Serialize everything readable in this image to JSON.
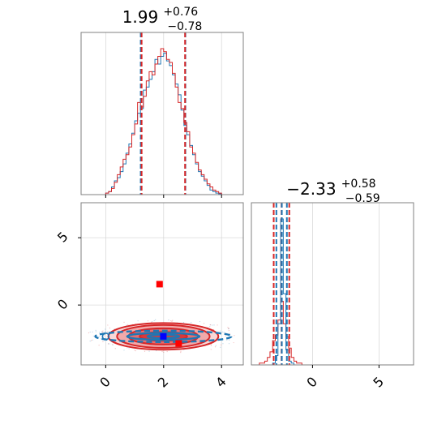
{
  "chart_data": {
    "type": "corner",
    "colors": {
      "series_a": "#1f77b4",
      "series_b": "#d62728",
      "marker_a": "#0000ff",
      "marker_b": "#ff0000",
      "grid": "#d9d9d9",
      "frame": "#808080"
    },
    "parameters": [
      {
        "title_main": "1.99",
        "title_plus": "+0.76",
        "title_minus": "−0.78",
        "range": [
          -0.85,
          4.75
        ],
        "ticks": [
          0,
          2,
          4
        ],
        "tick_labels": [
          "0",
          "2",
          "4"
        ],
        "quantiles": {
          "series_a": [
            1.21,
            1.99,
            2.75
          ],
          "series_b": [
            1.24,
            1.99,
            2.74
          ]
        },
        "histogram": {
          "bins": [
            0.0,
            0.1,
            0.2,
            0.3,
            0.4,
            0.5,
            0.6,
            0.7,
            0.8,
            0.9,
            1.0,
            1.1,
            1.2,
            1.3,
            1.4,
            1.5,
            1.6,
            1.7,
            1.8,
            1.9,
            2.0,
            2.1,
            2.2,
            2.3,
            2.4,
            2.5,
            2.6,
            2.7,
            2.8,
            2.9,
            3.0,
            3.1,
            3.2,
            3.3,
            3.4,
            3.5,
            3.6,
            3.7,
            3.8,
            3.9
          ],
          "series_a": [
            0.01,
            0.02,
            0.05,
            0.09,
            0.11,
            0.15,
            0.2,
            0.27,
            0.33,
            0.4,
            0.48,
            0.53,
            0.56,
            0.68,
            0.7,
            0.75,
            0.8,
            0.88,
            0.85,
            0.9,
            0.92,
            0.87,
            0.84,
            0.78,
            0.72,
            0.65,
            0.55,
            0.45,
            0.39,
            0.32,
            0.26,
            0.2,
            0.15,
            0.12,
            0.09,
            0.06,
            0.03,
            0.02,
            0.01,
            0.005
          ],
          "series_b": [
            0.01,
            0.02,
            0.04,
            0.08,
            0.13,
            0.18,
            0.23,
            0.26,
            0.31,
            0.39,
            0.46,
            0.6,
            0.57,
            0.64,
            0.74,
            0.8,
            0.78,
            0.85,
            0.9,
            0.95,
            0.93,
            0.88,
            0.86,
            0.79,
            0.7,
            0.6,
            0.56,
            0.47,
            0.41,
            0.31,
            0.27,
            0.21,
            0.16,
            0.13,
            0.1,
            0.07,
            0.05,
            0.03,
            0.02,
            0.01
          ]
        }
      },
      {
        "title_main": "−2.33",
        "title_plus": "+0.58",
        "title_minus": "−0.59",
        "range": [
          -4.6,
          7.6
        ],
        "ticks": [
          0,
          5
        ],
        "tick_labels": [
          "0",
          "5"
        ],
        "quantiles": {
          "series_a": [
            -2.72,
            -2.31,
            -1.93
          ],
          "series_b": [
            -2.92,
            -2.33,
            -1.75
          ]
        },
        "histogram": {
          "bins": [
            -4.4,
            -4.2,
            -4.0,
            -3.8,
            -3.6,
            -3.4,
            -3.2,
            -3.0,
            -2.8,
            -2.6,
            -2.4,
            -2.2,
            -2.0,
            -1.8,
            -1.6,
            -1.4,
            -1.2,
            -1.0,
            -0.8,
            -0.6,
            -0.4,
            -0.2,
            0.0
          ],
          "series_a": [
            0,
            0,
            0,
            0,
            0,
            0,
            0,
            0.01,
            0.05,
            0.22,
            0.78,
            0.38,
            0.08,
            0.02,
            0.01,
            0,
            0,
            0,
            0,
            0,
            0,
            0,
            0
          ],
          "series_b": [
            0,
            0,
            0.01,
            0.01,
            0.02,
            0.04,
            0.07,
            0.13,
            0.16,
            0.24,
            0.34,
            0.22,
            0.15,
            0.09,
            0.04,
            0.02,
            0.01,
            0.01,
            0,
            0,
            0,
            0,
            0
          ]
        }
      }
    ],
    "joint": {
      "contours": {
        "series_b": [
          {
            "cx": 1.99,
            "cy": -2.33,
            "rx": 1.9,
            "ry": 0.99
          },
          {
            "cx": 1.99,
            "cy": -2.33,
            "rx": 1.6,
            "ry": 0.85
          },
          {
            "cx": 1.99,
            "cy": -2.33,
            "rx": 1.2,
            "ry": 0.6
          },
          {
            "cx": 1.99,
            "cy": -2.33,
            "rx": 0.82,
            "ry": 0.33
          }
        ],
        "series_a": [
          {
            "cx": 1.99,
            "cy": -2.33,
            "rx": 2.35,
            "ry": 0.42
          },
          {
            "cx": 1.99,
            "cy": -2.33,
            "rx": 1.25,
            "ry": 0.26
          },
          {
            "cx": 1.99,
            "cy": -2.33,
            "rx": 0.55,
            "ry": 0.13
          }
        ]
      },
      "points": {
        "series_b": [
          {
            "x": 1.86,
            "y": 1.55
          },
          {
            "x": 2.52,
            "y": -2.85
          }
        ],
        "series_a": [
          {
            "x": 1.99,
            "y": -2.33
          }
        ]
      },
      "y_ticks": [
        0,
        5
      ],
      "y_tick_labels": [
        "0",
        "5"
      ]
    }
  }
}
